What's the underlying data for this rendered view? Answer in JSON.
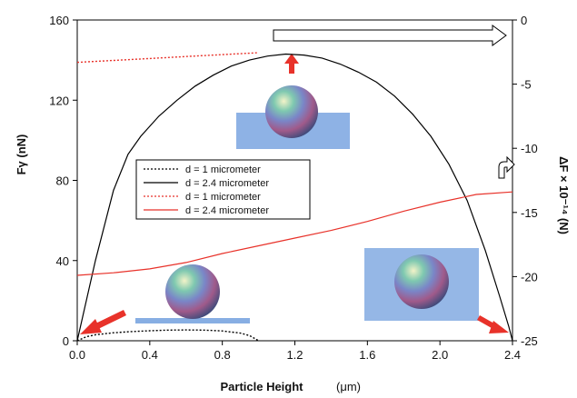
{
  "chart_data": {
    "type": "line",
    "xlabel": "Particle Height",
    "xunit": "(μm)",
    "ylabel_left": "Fγ (nN)",
    "ylabel_right": "ΔF × 10⁻¹⁴ (N)",
    "xlim": [
      0,
      2.4
    ],
    "ylim_left": [
      0,
      160
    ],
    "ylim_right": [
      -25,
      0
    ],
    "x_ticks": [
      "0.0",
      "0.4",
      "0.8",
      "1.2",
      "1.6",
      "2.0",
      "2.4"
    ],
    "y_left_ticks": [
      "0",
      "40",
      "80",
      "120",
      "160"
    ],
    "y_right_ticks": [
      "0",
      "-5",
      "-10",
      "-15",
      "-20",
      "-25"
    ],
    "grid": false,
    "legend_position": "center-left",
    "series": [
      {
        "name": "d = 1 micrometer",
        "axis": "left",
        "color": "#000000",
        "style": "dotted",
        "x": [
          0.0,
          0.05,
          0.1,
          0.2,
          0.3,
          0.4,
          0.5,
          0.6,
          0.7,
          0.8,
          0.9,
          0.95,
          1.0
        ],
        "y": [
          0,
          2,
          3,
          4,
          4.6,
          5.0,
          5.3,
          5.4,
          5.3,
          4.9,
          3.8,
          2.6,
          0
        ]
      },
      {
        "name": "d = 2.4 micrometer",
        "axis": "left",
        "color": "#000000",
        "style": "solid",
        "x": [
          0.0,
          0.1,
          0.2,
          0.28,
          0.35,
          0.45,
          0.55,
          0.65,
          0.75,
          0.85,
          0.95,
          1.05,
          1.15,
          1.25,
          1.35,
          1.45,
          1.55,
          1.65,
          1.75,
          1.85,
          1.95,
          2.05,
          2.15,
          2.25,
          2.33,
          2.38,
          2.4
        ],
        "y": [
          0,
          40,
          75,
          93,
          102,
          112,
          120,
          127,
          132.5,
          137,
          140,
          142,
          143,
          142.5,
          141,
          138,
          134,
          129,
          122,
          113,
          102,
          88,
          70,
          45,
          22,
          7,
          0
        ]
      },
      {
        "name": "d = 1 micrometer",
        "axis": "right",
        "color": "#e8322a",
        "style": "dotted",
        "x": [
          0.0,
          0.2,
          0.4,
          0.6,
          0.8,
          1.0
        ],
        "y": [
          -3.3,
          -3.15,
          -3.0,
          -2.85,
          -2.7,
          -2.55
        ]
      },
      {
        "name": "d = 2.4 micrometer",
        "axis": "right",
        "color": "#e8322a",
        "style": "solid",
        "x": [
          0.0,
          0.2,
          0.4,
          0.6,
          0.8,
          1.0,
          1.2,
          1.4,
          1.6,
          1.8,
          2.0,
          2.2,
          2.4
        ],
        "y": [
          -19.9,
          -19.7,
          -19.4,
          -18.9,
          -18.2,
          -17.6,
          -17.0,
          -16.4,
          -15.7,
          -14.9,
          -14.2,
          -13.6,
          -13.4
        ]
      }
    ]
  }
}
